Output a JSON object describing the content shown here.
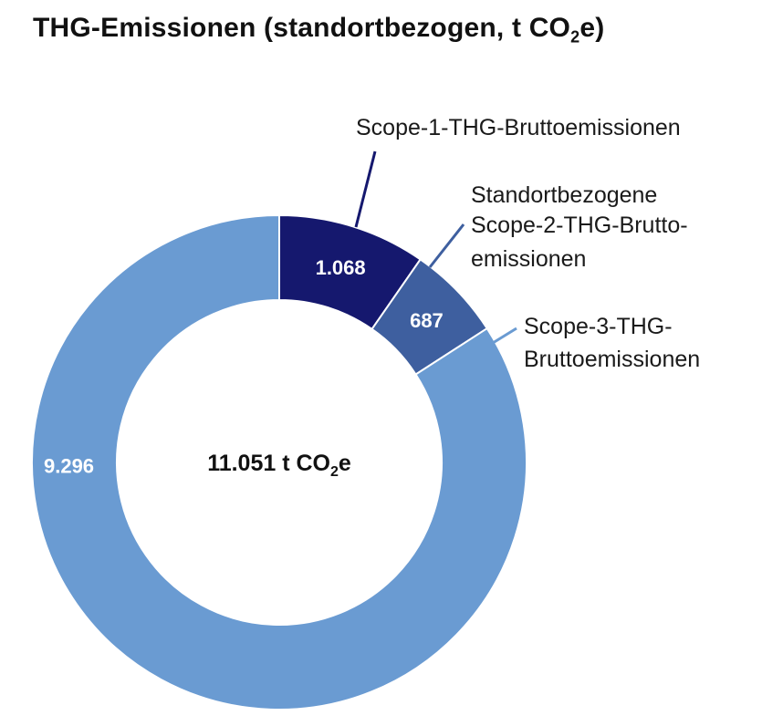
{
  "chart_data": {
    "type": "pie",
    "title_main": "THG-Emissionen (standortbezogen, t CO",
    "title_sub": "2",
    "title_end": "e)",
    "center_label_main": "11.051 t CO",
    "center_label_sub": "2",
    "center_label_end": "e",
    "total": 11051,
    "slices": [
      {
        "label_lines": [
          "Scope-1-THG-Bruttoemissionen"
        ],
        "value": 1068,
        "value_label": "1.068",
        "color": "#15186e"
      },
      {
        "label_lines": [
          "Standortbezogene",
          "Scope-2-THG-Brutto-",
          "emissionen"
        ],
        "value": 687,
        "value_label": "687",
        "color": "#3e5f9f"
      },
      {
        "label_lines": [
          "Scope-3-THG-",
          "Bruttoemissionen"
        ],
        "value": 9296,
        "value_label": "9.296",
        "color": "#6a9bd2"
      }
    ]
  }
}
